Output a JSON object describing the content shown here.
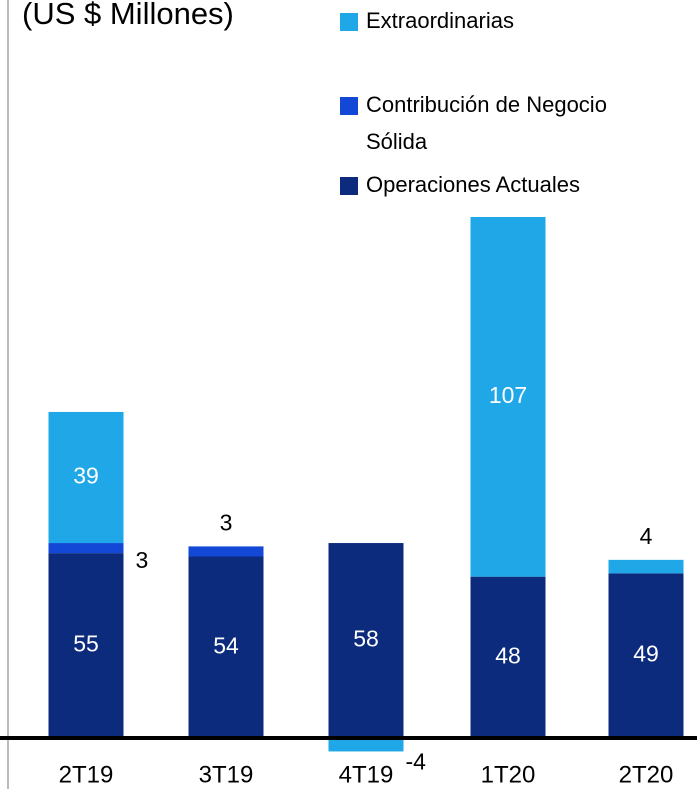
{
  "chart_data": {
    "type": "bar",
    "stacked": true,
    "title": "(US $ Millones)",
    "categories": [
      "2T19",
      "3T19",
      "4T19",
      "1T20",
      "2T20"
    ],
    "series": [
      {
        "name": "Operaciones Actuales",
        "color": "#0c2b7d",
        "values": [
          55,
          54,
          58,
          48,
          49
        ]
      },
      {
        "name": "Contribución de Negocio Sólida",
        "color": "#1347d6",
        "values": [
          3,
          3,
          null,
          null,
          null
        ]
      },
      {
        "name": "Extraordinarias",
        "color": "#1fa7e8",
        "values": [
          39,
          null,
          -4,
          107,
          4
        ]
      }
    ]
  }
}
